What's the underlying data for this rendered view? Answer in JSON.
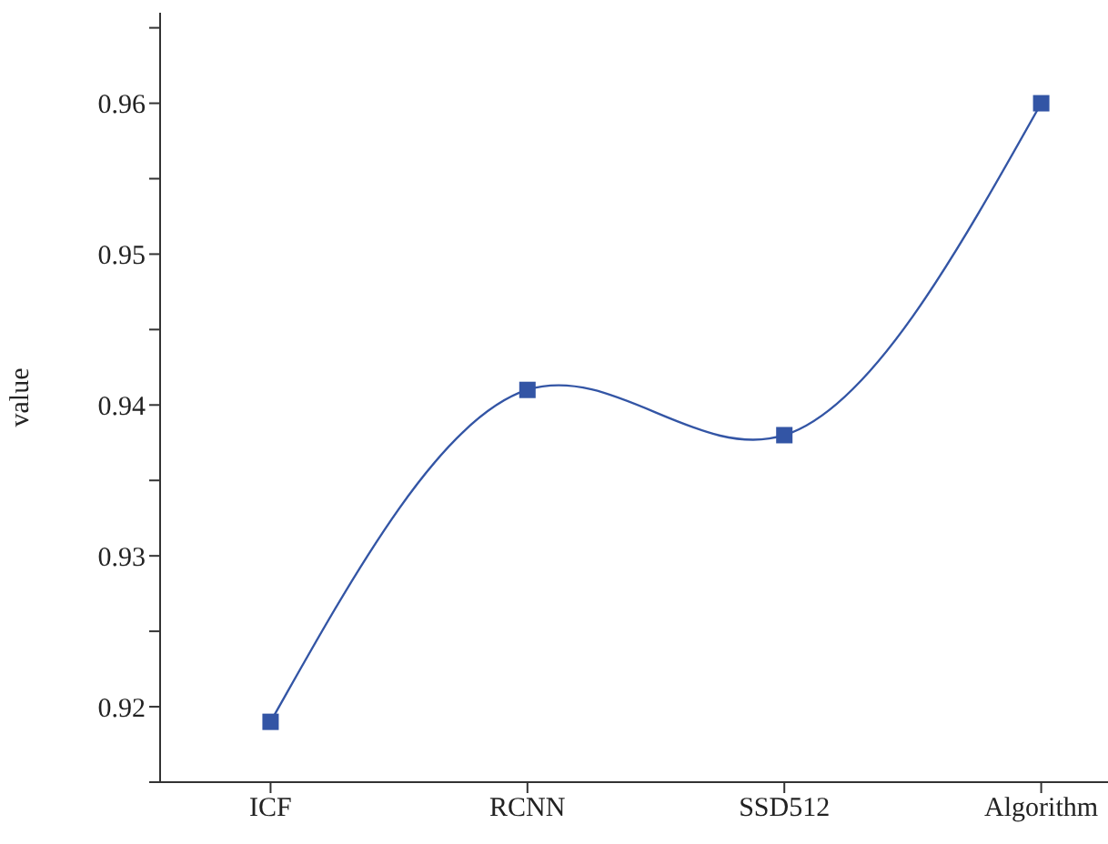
{
  "chart_data": {
    "type": "line",
    "ylabel": "value",
    "categories": [
      "ICF",
      "RCNN",
      "SSD512",
      "Algorithm"
    ],
    "series": [
      {
        "color": "#3355a5",
        "values": [
          0.919,
          0.941,
          0.938,
          0.96
        ]
      }
    ],
    "ylim": [
      0.915,
      0.966
    ],
    "yticks": [
      {
        "value": 0.915,
        "label": null
      },
      0.92,
      {
        "value": 0.925,
        "label": null
      },
      0.93,
      {
        "value": 0.935,
        "label": null
      },
      0.94,
      {
        "value": 0.945,
        "label": null
      },
      0.95,
      {
        "value": 0.955,
        "label": null
      },
      0.96,
      {
        "value": 0.965,
        "label": null
      }
    ],
    "marker": "square",
    "line_style": "solid",
    "grid": false,
    "legend": false
  }
}
